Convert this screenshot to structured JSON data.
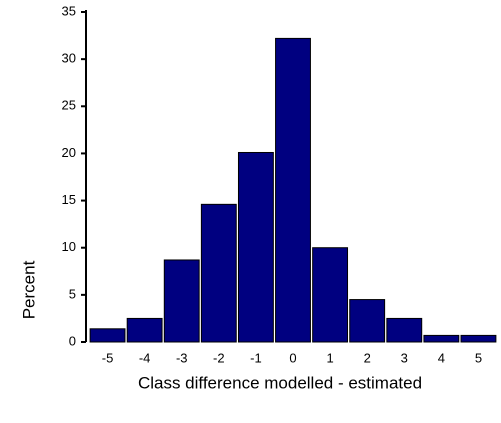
{
  "chart_data": {
    "type": "bar",
    "x_label": "Class difference modelled - estimated",
    "y_label": "Percent",
    "categories": [
      "-5",
      "-4",
      "-3",
      "-2",
      "-1",
      "0",
      "1",
      "2",
      "3",
      "4",
      "5"
    ],
    "values": [
      1.4,
      2.5,
      8.7,
      14.6,
      20.1,
      32.2,
      10.0,
      4.5,
      2.5,
      0.7,
      0.7
    ],
    "color": "#000080",
    "ylim": [
      0,
      35
    ],
    "yticks": [
      0,
      5,
      10,
      15,
      20,
      25,
      30,
      35
    ],
    "grid": false
  }
}
